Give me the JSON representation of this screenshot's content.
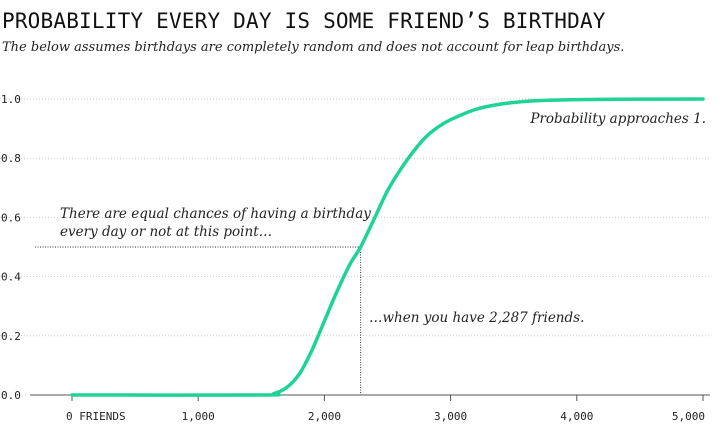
{
  "chart_data": {
    "type": "line",
    "title": "PROBABILITY EVERY DAY IS SOME FRIEND’S BIRTHDAY",
    "subtitle": "The below assumes birthdays are completely random and does not account for leap birthdays.",
    "xlabel": "",
    "ylabel": "",
    "xlim": [
      0,
      5000
    ],
    "ylim": [
      0,
      1.0
    ],
    "x_ticks": [
      0,
      1000,
      2000,
      3000,
      4000,
      5000
    ],
    "x_tick_labels": [
      "0 FRIENDS",
      "1,000",
      "2,000",
      "3,000",
      "4,000",
      "5,000"
    ],
    "y_ticks": [
      0,
      0.2,
      0.4,
      0.6,
      0.8,
      1.0
    ],
    "y_tick_labels": [
      "0.0",
      "0.2",
      "0.4",
      "0.6",
      "0.8",
      "1.0"
    ],
    "grid": "horizontal dotted",
    "legend": "none",
    "series": [
      {
        "color": "#1dd395",
        "x": [
          0,
          1500,
          1600,
          1700,
          1800,
          1900,
          2000,
          2100,
          2200,
          2287,
          2400,
          2500,
          2600,
          2700,
          2800,
          2900,
          3000,
          3200,
          3400,
          3600,
          3800,
          4000,
          4500,
          5000
        ],
        "y": [
          0,
          0.0,
          0.005,
          0.025,
          0.07,
          0.15,
          0.25,
          0.35,
          0.44,
          0.5,
          0.6,
          0.69,
          0.76,
          0.82,
          0.87,
          0.905,
          0.93,
          0.965,
          0.983,
          0.992,
          0.996,
          0.998,
          0.9995,
          1.0
        ]
      }
    ],
    "marker": {
      "x": 2287,
      "y": 0.5
    },
    "annotations": {
      "half_line1": "There are equal chances of having a birthday",
      "half_line2": "every day or not at this point…",
      "friends": "…when you have 2,287 friends.",
      "approach": "Probability approaches 1."
    }
  },
  "colors": {
    "line": "#1dd395",
    "grid": "#cccccc",
    "guide": "#333333",
    "text": "#222222"
  }
}
